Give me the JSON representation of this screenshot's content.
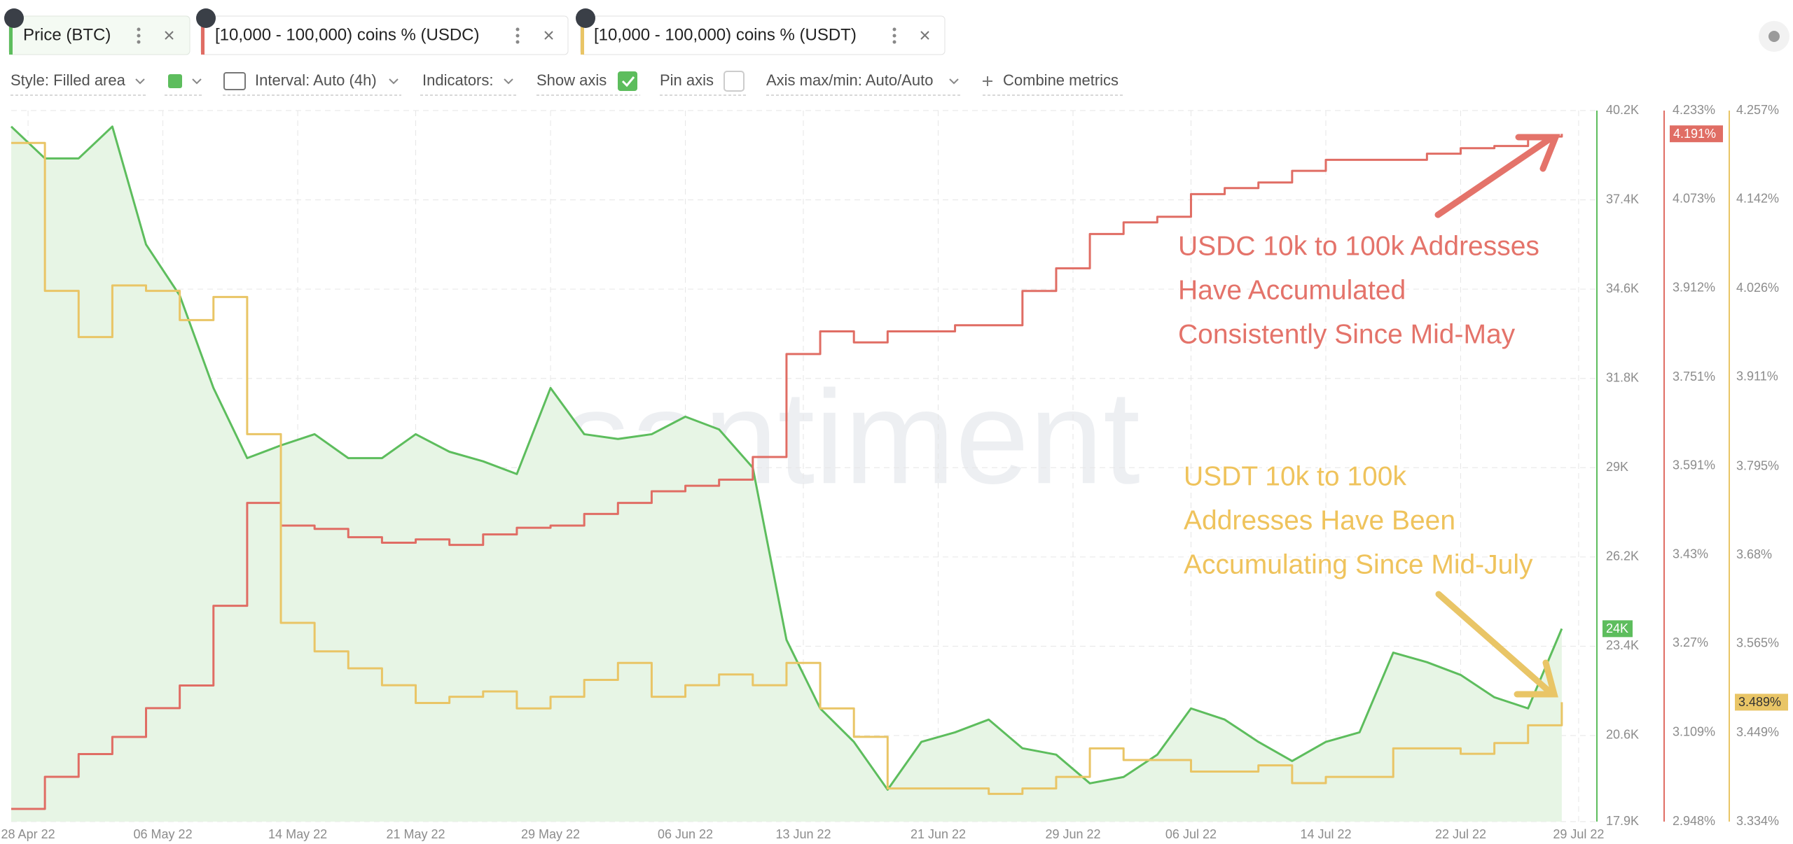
{
  "tabs": [
    "Price (BTC)",
    "[10,000 - 100,000) coins % (USDC)",
    "[10,000 - 100,000) coins % (USDT)"
  ],
  "toolbar": [
    "Style: Filled area",
    "Interval: Auto (4h)",
    "Indicators:",
    "Show axis",
    "Pin axis",
    "Axis max/min: Auto/Auto",
    "Combine metrics"
  ],
  "chart_data": {
    "type": "line",
    "watermark": "santiment",
    "annotations": [
      {
        "lines": [
          "USDC 10k to 100k Addresses",
          "Have Accumulated",
          "Consistently Since Mid-May"
        ],
        "color": "#e4736a"
      },
      {
        "lines": [
          "USDT 10k to 100k",
          "Addresses Have Been",
          "Accumulating Since Mid-July"
        ],
        "color": "#efc35c"
      }
    ],
    "x": [
      "2022-04-27",
      "2022-04-29",
      "2022-05-01",
      "2022-05-03",
      "2022-05-05",
      "2022-05-07",
      "2022-05-09",
      "2022-05-11",
      "2022-05-13",
      "2022-05-15",
      "2022-05-17",
      "2022-05-19",
      "2022-05-21",
      "2022-05-23",
      "2022-05-25",
      "2022-05-27",
      "2022-05-29",
      "2022-05-31",
      "2022-06-02",
      "2022-06-04",
      "2022-06-06",
      "2022-06-08",
      "2022-06-10",
      "2022-06-12",
      "2022-06-14",
      "2022-06-16",
      "2022-06-18",
      "2022-06-20",
      "2022-06-22",
      "2022-06-24",
      "2022-06-26",
      "2022-06-28",
      "2022-06-30",
      "2022-07-02",
      "2022-07-04",
      "2022-07-06",
      "2022-07-08",
      "2022-07-10",
      "2022-07-12",
      "2022-07-14",
      "2022-07-16",
      "2022-07-18",
      "2022-07-20",
      "2022-07-22",
      "2022-07-24",
      "2022-07-26",
      "2022-07-28"
    ],
    "xlim": [
      "2022-04-27",
      "2022-07-30"
    ],
    "xticks": [
      {
        "value": "2022-04-28",
        "label": "28 Apr 22"
      },
      {
        "value": "2022-05-06",
        "label": "06 May 22"
      },
      {
        "value": "2022-05-14",
        "label": "14 May 22"
      },
      {
        "value": "2022-05-21",
        "label": "21 May 22"
      },
      {
        "value": "2022-05-29",
        "label": "29 May 22"
      },
      {
        "value": "2022-06-06",
        "label": "06 Jun 22"
      },
      {
        "value": "2022-06-13",
        "label": "13 Jun 22"
      },
      {
        "value": "2022-06-21",
        "label": "21 Jun 22"
      },
      {
        "value": "2022-06-29",
        "label": "29 Jun 22"
      },
      {
        "value": "2022-07-06",
        "label": "06 Jul 22"
      },
      {
        "value": "2022-07-14",
        "label": "14 Jul 22"
      },
      {
        "value": "2022-07-22",
        "label": "22 Jul 22"
      },
      {
        "value": "2022-07-29",
        "label": "29 Jul 22"
      }
    ],
    "ylim": [
      17900,
      40200
    ],
    "yticks": [
      {
        "value": 17900,
        "label": "17.9K"
      },
      {
        "value": 20600,
        "label": "20.6K"
      },
      {
        "value": 23400,
        "label": "23.4K"
      },
      {
        "value": 26200,
        "label": "26.2K"
      },
      {
        "value": 29000,
        "label": "29K"
      },
      {
        "value": 31800,
        "label": "31.8K"
      },
      {
        "value": 34600,
        "label": "34.6K"
      },
      {
        "value": 37400,
        "label": "37.4K"
      },
      {
        "value": 40200,
        "label": "40.2K"
      }
    ],
    "y2lim": [
      2.948,
      4.233
    ],
    "y2ticks": [
      {
        "value": 2.948,
        "label": "2.948%"
      },
      {
        "value": 3.109,
        "label": "3.109%"
      },
      {
        "value": 3.27,
        "label": "3.27%"
      },
      {
        "value": 3.43,
        "label": "3.43%"
      },
      {
        "value": 3.591,
        "label": "3.591%"
      },
      {
        "value": 3.751,
        "label": "3.751%"
      },
      {
        "value": 3.912,
        "label": "3.912%"
      },
      {
        "value": 4.073,
        "label": "4.073%"
      },
      {
        "value": 4.233,
        "label": "4.233%"
      }
    ],
    "y3lim": [
      3.334,
      4.257
    ],
    "y3ticks": [
      {
        "value": 3.334,
        "label": "3.334%"
      },
      {
        "value": 3.449,
        "label": "3.449%"
      },
      {
        "value": 3.565,
        "label": "3.565%"
      },
      {
        "value": 3.68,
        "label": "3.68%"
      },
      {
        "value": 3.795,
        "label": "3.795%"
      },
      {
        "value": 3.911,
        "label": "3.911%"
      },
      {
        "value": 4.026,
        "label": "4.026%"
      },
      {
        "value": 4.142,
        "label": "4.142%"
      },
      {
        "value": 4.257,
        "label": "4.257%"
      }
    ],
    "grid": true,
    "series": [
      {
        "name": "Price (BTC)",
        "axis": "y",
        "color": "#5dbd5d",
        "fill": "#e7f5e5",
        "step": false,
        "values": [
          39700,
          38700,
          38700,
          39700,
          36000,
          34400,
          31500,
          29300,
          29700,
          30050,
          29300,
          29300,
          30050,
          29500,
          29200,
          28800,
          31500,
          30050,
          29900,
          30050,
          30600,
          30200,
          29000,
          23600,
          21450,
          20400,
          18900,
          20400,
          20700,
          21100,
          20200,
          20000,
          19100,
          19300,
          20000,
          21450,
          21100,
          20400,
          19800,
          20400,
          20700,
          23200,
          22900,
          22500,
          21800,
          21450,
          23950
        ],
        "value_labels": [
          null,
          null,
          null,
          null,
          null,
          null,
          null,
          null,
          null,
          null,
          null,
          null,
          null,
          null,
          null,
          null,
          null,
          null,
          null,
          null,
          null,
          null,
          null,
          null,
          null,
          null,
          null,
          null,
          null,
          null,
          null,
          null,
          null,
          null,
          null,
          null,
          null,
          null,
          null,
          null,
          null,
          null,
          null,
          null,
          null,
          null,
          "24K"
        ]
      },
      {
        "name": "[10,000 - 100,000) coins % (USDC)",
        "axis": "y2",
        "color": "#e06d64",
        "step": true,
        "values": [
          2.971,
          3.029,
          3.07,
          3.101,
          3.153,
          3.194,
          3.338,
          3.524,
          3.483,
          3.477,
          3.462,
          3.452,
          3.458,
          3.448,
          3.467,
          3.479,
          3.483,
          3.504,
          3.524,
          3.545,
          3.555,
          3.566,
          3.607,
          3.793,
          3.834,
          3.814,
          3.834,
          3.834,
          3.845,
          3.845,
          3.907,
          3.948,
          4.01,
          4.031,
          4.041,
          4.082,
          4.093,
          4.103,
          4.124,
          4.144,
          4.144,
          4.144,
          4.155,
          4.165,
          4.169,
          4.186,
          4.191
        ],
        "value_labels": [
          null,
          null,
          null,
          null,
          null,
          null,
          null,
          null,
          null,
          null,
          null,
          null,
          null,
          null,
          null,
          null,
          null,
          null,
          null,
          null,
          null,
          null,
          null,
          null,
          null,
          null,
          null,
          null,
          null,
          null,
          null,
          null,
          null,
          null,
          null,
          null,
          null,
          null,
          null,
          null,
          null,
          null,
          null,
          null,
          null,
          null,
          "4.191%"
        ]
      },
      {
        "name": "[10,000 - 100,000) coins % (USDT)",
        "axis": "y3",
        "color": "#e9c566",
        "step": true,
        "values": [
          4.215,
          4.023,
          3.963,
          4.03,
          4.023,
          3.985,
          4.015,
          3.837,
          3.592,
          3.555,
          3.533,
          3.511,
          3.488,
          3.496,
          3.503,
          3.481,
          3.496,
          3.518,
          3.54,
          3.496,
          3.511,
          3.525,
          3.511,
          3.54,
          3.481,
          3.444,
          3.377,
          3.377,
          3.377,
          3.37,
          3.377,
          3.392,
          3.429,
          3.414,
          3.414,
          3.399,
          3.399,
          3.407,
          3.384,
          3.392,
          3.392,
          3.429,
          3.429,
          3.422,
          3.436,
          3.459,
          3.489
        ],
        "value_labels": [
          null,
          null,
          null,
          null,
          null,
          null,
          null,
          null,
          null,
          null,
          null,
          null,
          null,
          null,
          null,
          null,
          null,
          null,
          null,
          null,
          null,
          null,
          null,
          null,
          null,
          null,
          null,
          null,
          null,
          null,
          null,
          null,
          null,
          null,
          null,
          null,
          null,
          null,
          null,
          null,
          null,
          null,
          null,
          null,
          null,
          null,
          "3.489%"
        ]
      }
    ]
  }
}
